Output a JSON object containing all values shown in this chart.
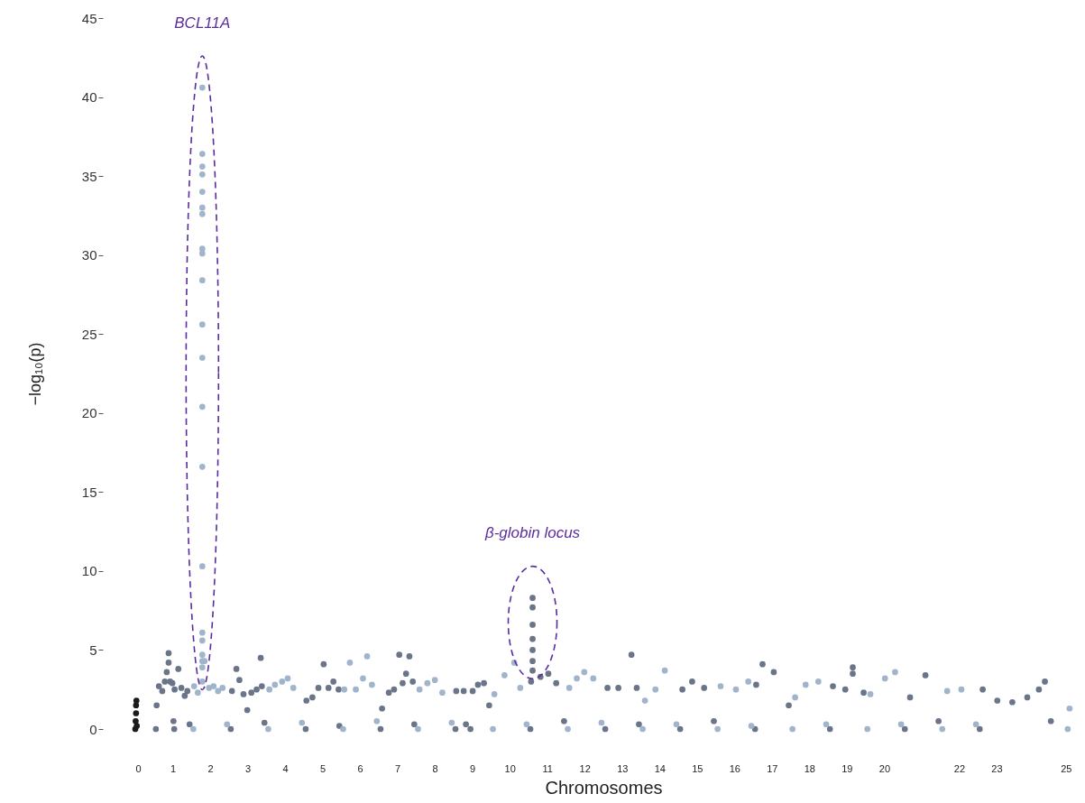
{
  "chart_data": {
    "type": "scatter",
    "xlabel": "Chromosomes",
    "ylabel": "−log₁₀(p)",
    "xlim": [
      0,
      25
    ],
    "ylim": [
      0,
      45
    ],
    "yticks": [
      0,
      5,
      10,
      15,
      20,
      25,
      30,
      35,
      40,
      45
    ],
    "xticks": [
      0,
      1,
      2,
      3,
      4,
      5,
      6,
      7,
      8,
      9,
      10,
      11,
      12,
      13,
      14,
      15,
      16,
      17,
      18,
      19,
      20,
      22,
      23,
      25
    ],
    "grid": false,
    "marker": "circle",
    "series": [
      {
        "color": "#1a1a1a",
        "x": [
          0,
          0.01,
          0.02,
          0.02,
          0.03,
          0.04
        ],
        "values": [
          0,
          0.5,
          1.0,
          1.5,
          1.8,
          0.2
        ]
      },
      {
        "color": "#6b7589",
        "x": [
          0.55,
          0.57,
          0.63,
          0.72,
          0.79,
          0.84,
          0.89,
          0.89,
          0.93,
          0.99,
          1.02,
          1.04,
          1.05,
          1.15,
          1.23,
          1.32,
          1.39,
          1.45,
          2.55,
          2.58,
          2.7,
          2.78,
          2.89,
          2.99,
          3.1,
          3.24,
          3.35,
          3.38,
          3.45,
          4.55,
          4.57,
          4.73,
          4.89,
          5.03,
          5.16,
          5.29,
          5.43,
          5.45,
          6.55,
          6.59,
          6.77,
          6.91,
          7.05,
          7.14,
          7.23,
          7.32,
          7.41,
          7.45,
          8.55,
          8.57,
          8.77,
          8.83,
          8.95,
          9.01,
          9.15,
          9.31,
          9.45,
          10.55,
          10.57,
          10.82,
          11.03,
          11.24,
          11.45,
          10.61,
          10.61,
          10.61,
          10.61,
          10.61,
          10.61,
          10.61,
          12.55,
          12.61,
          12.9,
          13.25,
          13.39,
          13.45,
          14.55,
          14.61,
          14.87,
          15.19,
          15.45,
          16.55,
          16.58,
          16.75,
          17.05,
          17.45,
          18.55,
          18.63,
          18.96,
          19.16,
          19.16,
          19.45,
          20.55,
          20.69,
          21.1,
          21.45,
          22.55,
          22.63,
          23.02,
          23.42,
          23.82,
          24.13,
          24.29,
          24.45
        ],
        "values": [
          0,
          1.5,
          2.7,
          2.4,
          3.0,
          3.6,
          4.8,
          4.2,
          3.0,
          2.9,
          0.5,
          0,
          2.5,
          3.8,
          2.6,
          2.1,
          2.4,
          0.3,
          0,
          2.4,
          3.8,
          3.1,
          2.2,
          1.2,
          2.3,
          2.5,
          4.5,
          2.7,
          0.4,
          0,
          1.8,
          2.0,
          2.6,
          4.1,
          2.6,
          3.0,
          2.5,
          0.2,
          0,
          1.3,
          2.3,
          2.5,
          4.7,
          2.9,
          3.5,
          4.6,
          3.0,
          0.3,
          0,
          2.4,
          2.4,
          0.3,
          0,
          2.4,
          2.8,
          2.9,
          1.5,
          0,
          3.0,
          3.3,
          3.5,
          2.9,
          0.5,
          8.3,
          7.7,
          6.6,
          5.7,
          5.0,
          4.3,
          3.7,
          0,
          2.6,
          2.6,
          4.7,
          2.6,
          0.3,
          0,
          2.5,
          3.0,
          2.6,
          0.5,
          0,
          2.8,
          4.1,
          3.6,
          1.5,
          0,
          2.7,
          2.5,
          3.9,
          3.5,
          2.3,
          0,
          2.0,
          3.4,
          0.5,
          0,
          2.5,
          1.8,
          1.7,
          2.0,
          2.5,
          3.0,
          0.5
        ]
      },
      {
        "color": "#a0b4cc",
        "x": [
          1.55,
          1.57,
          1.67,
          1.79,
          1.97,
          2.09,
          2.21,
          2.33,
          2.45,
          1.85,
          1.79,
          1.79,
          1.79,
          1.79,
          1.79,
          1.79,
          1.79,
          1.79,
          1.79,
          1.79,
          1.79,
          1.79,
          1.79,
          1.79,
          1.79,
          1.79,
          1.79,
          1.79,
          1.79,
          1.79,
          3.55,
          3.58,
          3.73,
          3.92,
          4.07,
          4.22,
          4.45,
          5.55,
          5.58,
          5.73,
          5.89,
          6.08,
          6.19,
          6.32,
          6.45,
          7.55,
          7.59,
          7.8,
          8.0,
          8.2,
          8.45,
          9.55,
          9.59,
          9.86,
          10.12,
          10.28,
          10.45,
          11.55,
          11.59,
          11.79,
          11.99,
          12.23,
          12.45,
          13.55,
          13.61,
          13.89,
          14.14,
          14.45,
          15.55,
          15.63,
          16.04,
          16.37,
          16.45,
          17.55,
          17.62,
          17.9,
          18.24,
          18.45,
          19.55,
          19.63,
          20.02,
          20.29,
          20.45,
          21.55,
          21.68,
          22.06,
          22.45,
          24.9,
          24.95
        ],
        "values": [
          0,
          2.7,
          2.3,
          3.0,
          2.6,
          2.7,
          2.4,
          2.6,
          0.3,
          4.3,
          40.6,
          36.4,
          35.6,
          35.1,
          34.0,
          33.0,
          32.6,
          30.4,
          30.1,
          28.4,
          25.6,
          23.5,
          20.4,
          16.6,
          10.3,
          6.1,
          5.6,
          4.7,
          4.3,
          3.9,
          0,
          2.5,
          2.8,
          3.0,
          3.2,
          2.6,
          0.4,
          0,
          2.5,
          4.2,
          2.5,
          3.2,
          4.6,
          2.8,
          0.5,
          0,
          2.5,
          2.9,
          3.1,
          2.3,
          0.4,
          0,
          2.2,
          3.4,
          4.2,
          2.6,
          0.3,
          0,
          2.6,
          3.2,
          3.6,
          3.2,
          0.4,
          0,
          1.8,
          2.5,
          3.7,
          0.3,
          0,
          2.7,
          2.5,
          3.0,
          0.2,
          0,
          2.0,
          2.8,
          3.0,
          0.3,
          0,
          2.2,
          3.2,
          3.6,
          0.3,
          0,
          2.4,
          2.5,
          0.3,
          0,
          1.3
        ]
      }
    ],
    "annotations": [
      "BCL11A",
      "β-globin locus"
    ]
  }
}
